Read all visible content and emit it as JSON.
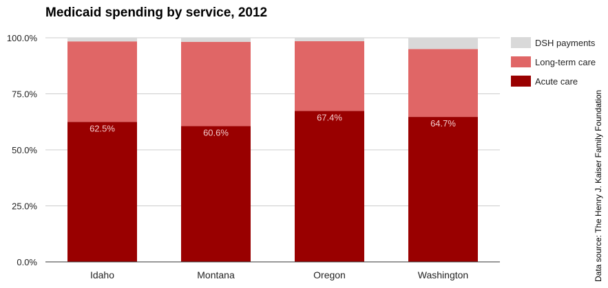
{
  "chart_data": {
    "type": "bar",
    "stacked": true,
    "title": "Medicaid spending by service, 2012",
    "categories": [
      "Idaho",
      "Montana",
      "Oregon",
      "Washington"
    ],
    "series": [
      {
        "name": "Acute care",
        "color": "#990000",
        "values": [
          62.5,
          60.6,
          67.4,
          64.7
        ],
        "labels": [
          "62.5%",
          "60.6%",
          "67.4%",
          "64.7%"
        ]
      },
      {
        "name": "Long-term care",
        "color": "#e06666",
        "values": [
          35.9,
          37.6,
          31.1,
          30.3
        ]
      },
      {
        "name": "DSH payments",
        "color": "#d9d9d9",
        "values": [
          1.6,
          1.8,
          1.5,
          5.0
        ]
      }
    ],
    "y_ticks": [
      "0.0%",
      "25.0%",
      "50.0%",
      "75.0%",
      "100.0%"
    ],
    "ylim": [
      0,
      100
    ],
    "grid": true,
    "legend_position": "right",
    "source": "Data source: The Henry J. Kaiser Family Foundation"
  }
}
